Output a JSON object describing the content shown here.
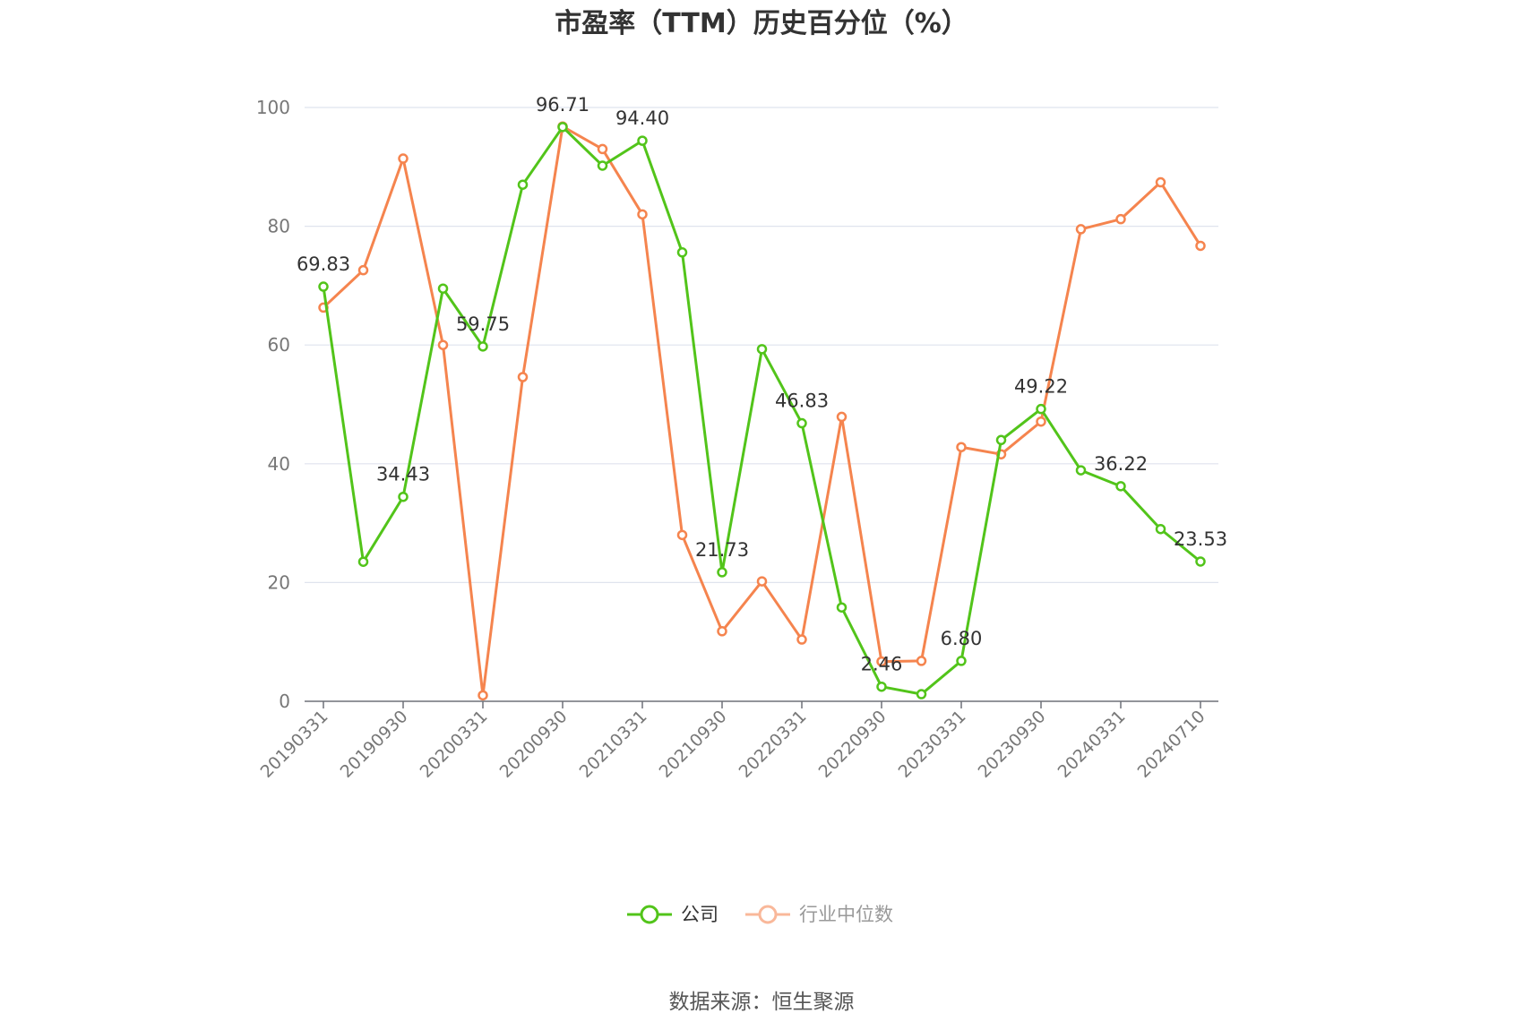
{
  "chart_data": {
    "type": "line",
    "title": "市盈率（TTM）历史百分位（%）",
    "xlabel": "",
    "ylabel": "",
    "ylim": [
      0,
      100
    ],
    "yticks": [
      0,
      20,
      40,
      60,
      80,
      100
    ],
    "x": [
      "20190331",
      "20190630",
      "20190930",
      "20191231",
      "20200331",
      "20200630",
      "20200930",
      "20201231",
      "20210331",
      "20210630",
      "20210930",
      "20211231",
      "20220331",
      "20220630",
      "20220930",
      "20221231",
      "20230331",
      "20230630",
      "20230930",
      "20231231",
      "20240331",
      "20240630",
      "20240710"
    ],
    "x_tick_labels": [
      "20190331",
      "20190930",
      "20200331",
      "20200930",
      "20210331",
      "20210930",
      "20220331",
      "20220930",
      "20230331",
      "20230930",
      "20240331",
      "20240710"
    ],
    "grid": true,
    "legend_position": "bottom",
    "series": [
      {
        "name": "公司",
        "color": "#52c41a",
        "values": [
          69.83,
          23.5,
          34.43,
          69.5,
          59.75,
          87.0,
          96.71,
          90.2,
          94.4,
          75.6,
          21.73,
          59.3,
          46.83,
          15.8,
          2.46,
          1.2,
          6.8,
          44.0,
          49.22,
          38.9,
          36.22,
          29.0,
          23.53
        ],
        "labels": [
          "69.83",
          "",
          "34.43",
          "",
          "59.75",
          "",
          "96.71",
          "",
          "94.40",
          "",
          "21.73",
          "",
          "46.83",
          "",
          "2.46",
          "",
          "6.80",
          "",
          "49.22",
          "",
          "36.22",
          "",
          "23.53"
        ]
      },
      {
        "name": "行业中位数",
        "color": "#f5844e",
        "values": [
          66.3,
          72.6,
          91.4,
          60.0,
          1.0,
          54.6,
          96.8,
          93.0,
          82.0,
          28.0,
          11.8,
          20.2,
          10.4,
          47.9,
          6.7,
          6.8,
          42.8,
          41.6,
          47.1,
          79.5,
          81.2,
          87.4,
          76.7
        ]
      }
    ],
    "source": "数据来源：恒生聚源"
  },
  "legend": {
    "company": "公司",
    "industry": "行业中位数"
  }
}
